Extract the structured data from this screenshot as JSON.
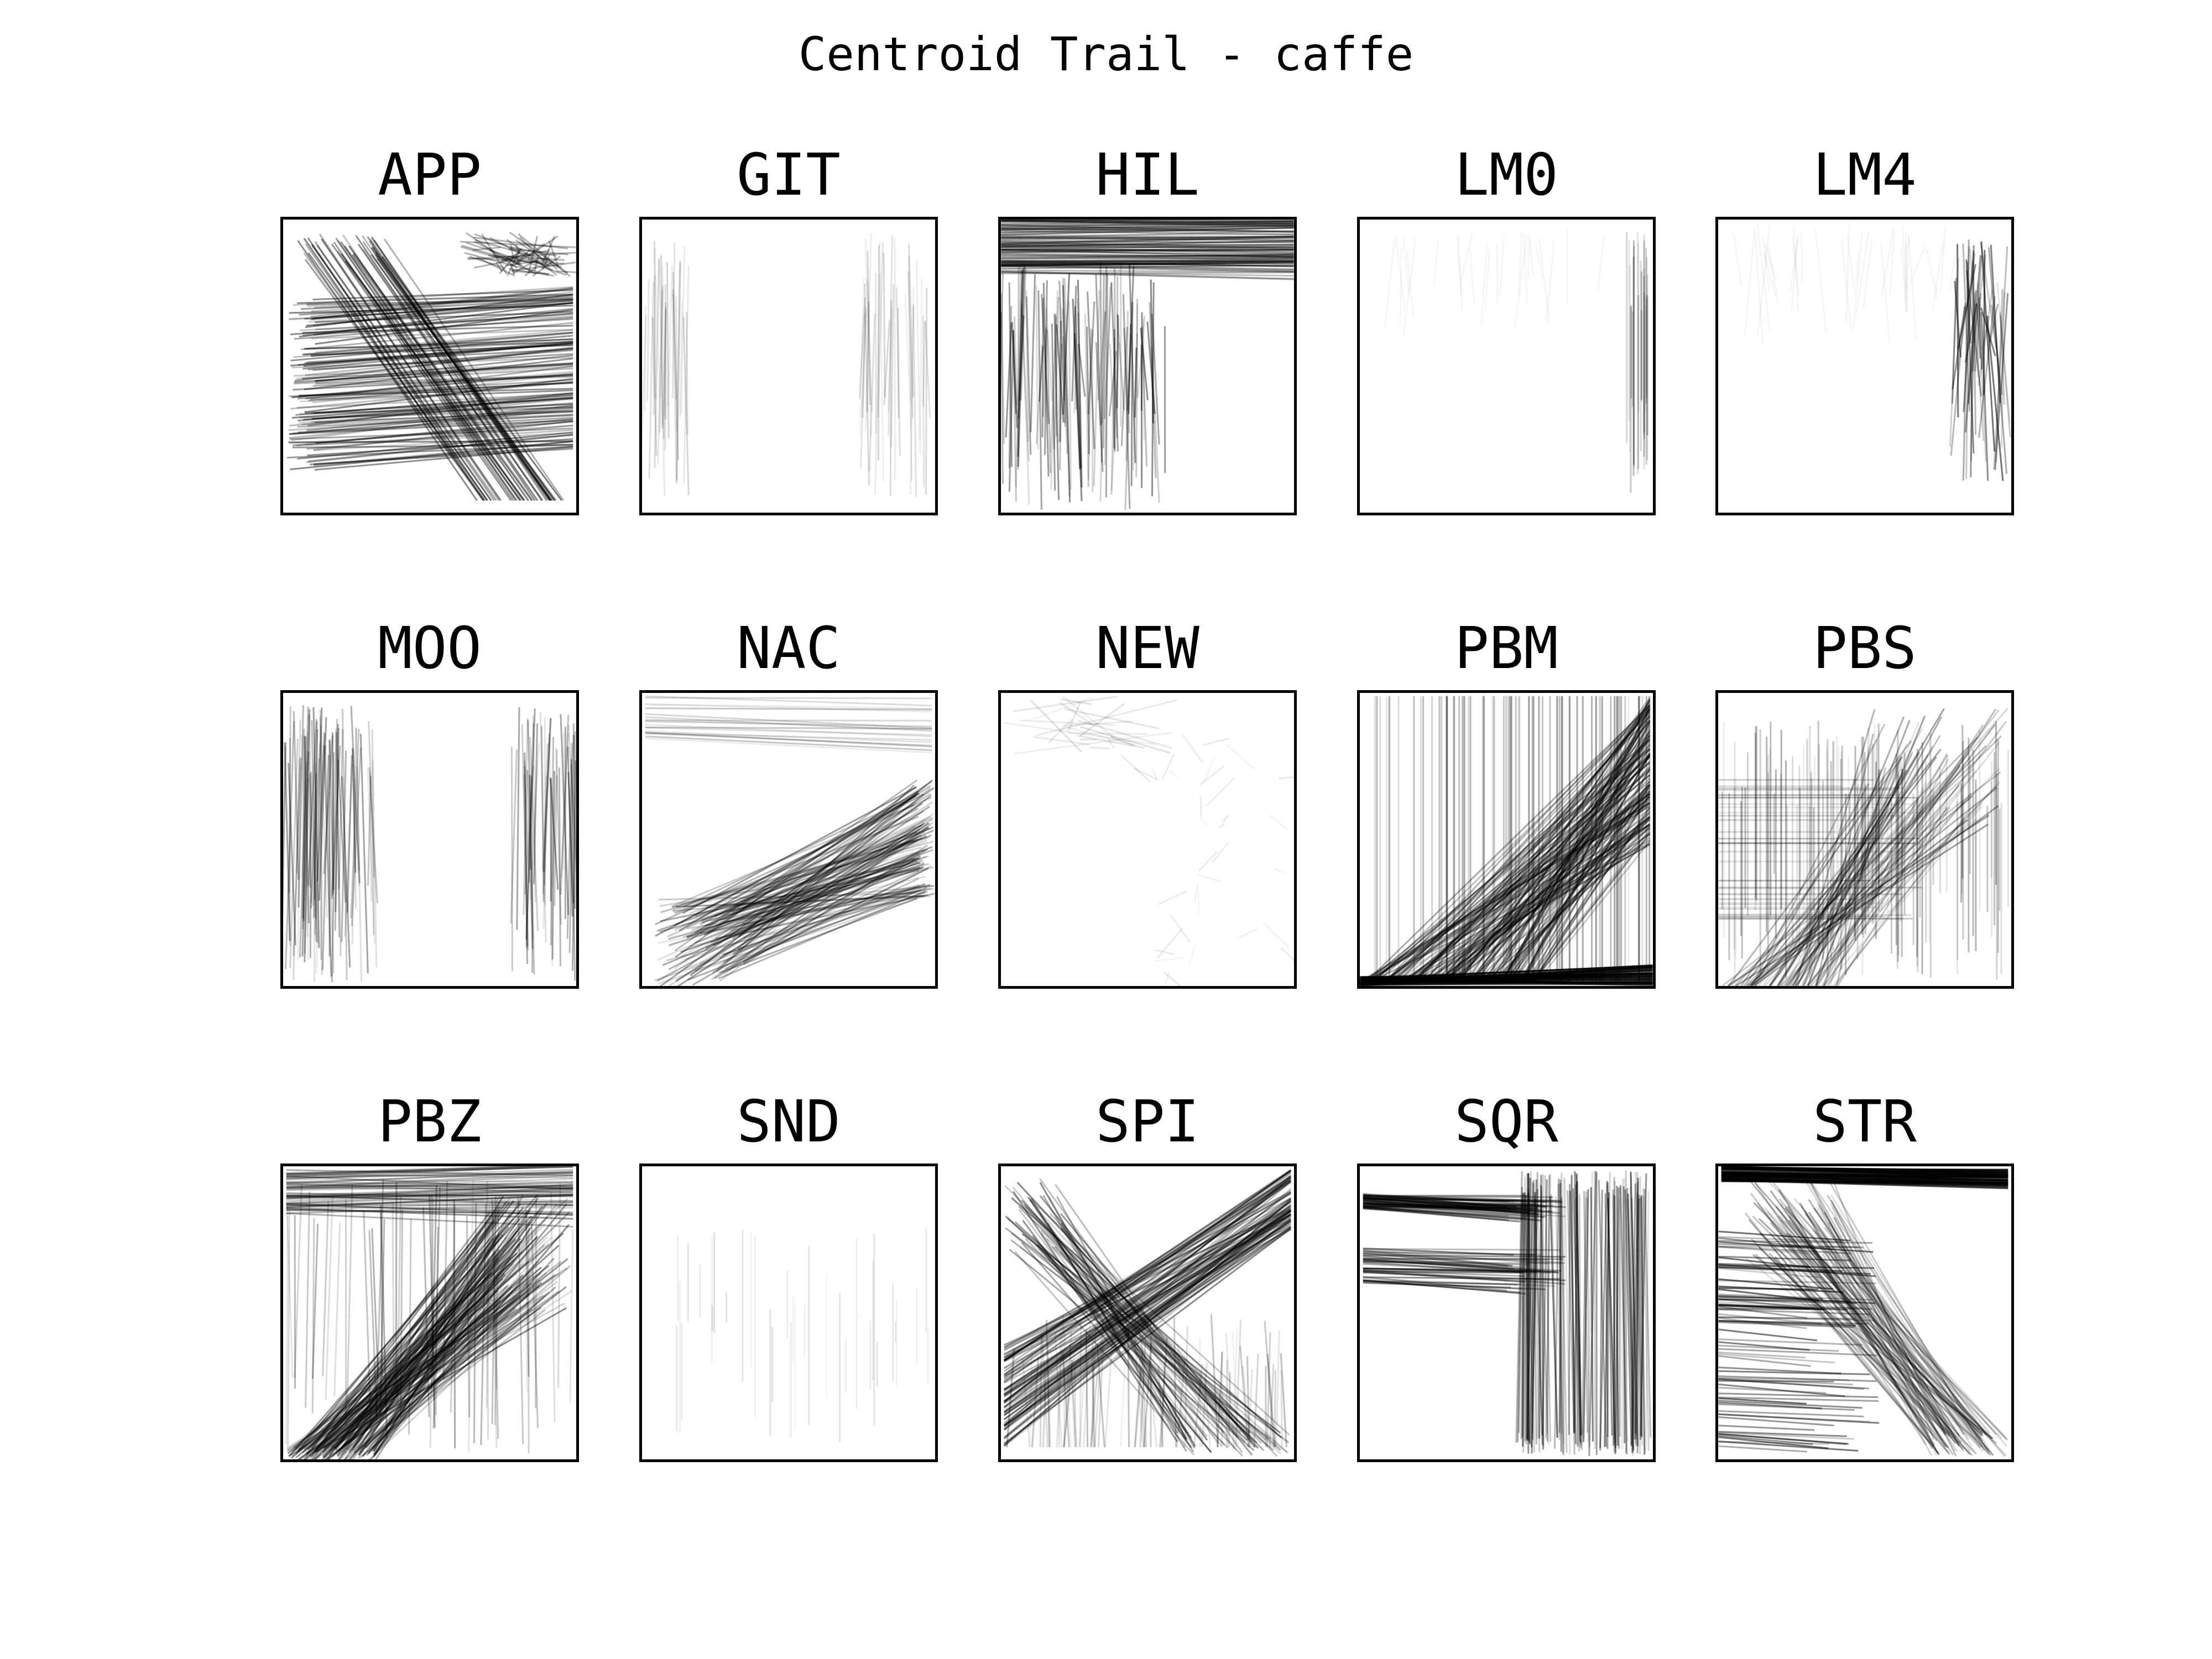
{
  "title": "Centroid Trail - caffe",
  "chart_data": {
    "type": "small-multiples-line-trails",
    "title": "Centroid Trail - caffe",
    "xlabel": "",
    "ylabel": "",
    "grid": false,
    "legend": "none",
    "layout": {
      "rows": 3,
      "cols": 5
    },
    "stroke_color": "#000000",
    "xlim": [
      0,
      1
    ],
    "ylim": [
      0,
      1
    ],
    "panels": [
      {
        "name": "APP",
        "density": 0.8,
        "pattern": "descending-diagonals-and-horizontal-bands"
      },
      {
        "name": "GIT",
        "density": 0.2,
        "pattern": "faint-vertical-lines-left-and-right"
      },
      {
        "name": "HIL",
        "density": 0.7,
        "pattern": "horizontal-lines-top-and-vertical-lines-left"
      },
      {
        "name": "LM0",
        "density": 0.12,
        "pattern": "faint-vertical-lines-right-edge"
      },
      {
        "name": "LM4",
        "density": 0.25,
        "pattern": "vertical-lines-right-edge"
      },
      {
        "name": "MOO",
        "density": 0.45,
        "pattern": "vertical-lines-left-and-right"
      },
      {
        "name": "NAC",
        "density": 0.45,
        "pattern": "fan-of-diagonals-converging-right"
      },
      {
        "name": "NEW",
        "density": 0.15,
        "pattern": "faint-scribbles-top-left-and-right"
      },
      {
        "name": "PBM",
        "density": 1.0,
        "pattern": "dense-ascending-diagonals-bottom-right"
      },
      {
        "name": "PBS",
        "density": 0.8,
        "pattern": "vertical-lines-and-ascending-diagonals"
      },
      {
        "name": "PBZ",
        "density": 0.9,
        "pattern": "dense-ascending-diagonals-and-top-horizontals"
      },
      {
        "name": "SND",
        "density": 0.06,
        "pattern": "very-faint-sparse-lines"
      },
      {
        "name": "SPI",
        "density": 0.75,
        "pattern": "crossing-arcs-and-diagonals"
      },
      {
        "name": "SQR",
        "density": 0.85,
        "pattern": "horizontal-bands-left-and-vertical-lines-right"
      },
      {
        "name": "STR",
        "density": 0.85,
        "pattern": "horizontal-bands-left-and-descending-lines"
      }
    ]
  }
}
